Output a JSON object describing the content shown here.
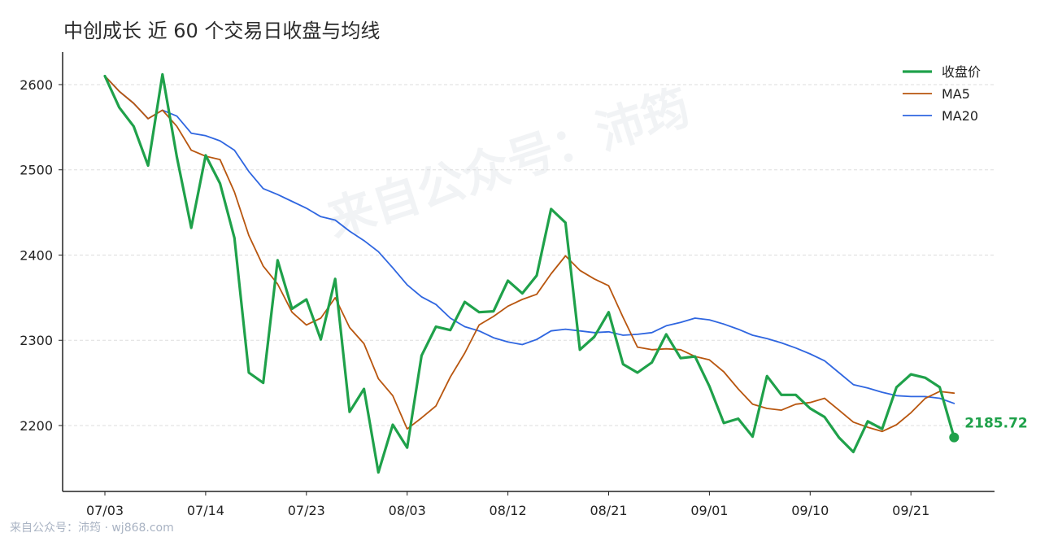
{
  "title": "中创成长 近 60 个交易日收盘与均线",
  "watermark": "来自公众号：沛筠",
  "footer": "来自公众号：沛筠 · wj868.com",
  "colors": {
    "close": "#1fa14a",
    "ma5": "#b8560f",
    "ma20": "#2f66e0",
    "grid": "#dddddd",
    "axis": "#222222"
  },
  "chart_data": {
    "type": "line",
    "title": "中创成长 近 60 个交易日收盘与均线",
    "xlabel": "",
    "ylabel": "",
    "ylim": [
      2130,
      2637
    ],
    "yticks": [
      2200,
      2300,
      2400,
      2500,
      2600
    ],
    "xticks": [
      {
        "i": 0,
        "label": "07/03"
      },
      {
        "i": 7,
        "label": "07/14"
      },
      {
        "i": 14,
        "label": "07/23"
      },
      {
        "i": 21,
        "label": "08/03"
      },
      {
        "i": 28,
        "label": "08/12"
      },
      {
        "i": 35,
        "label": "08/21"
      },
      {
        "i": 42,
        "label": "09/01"
      },
      {
        "i": 49,
        "label": "09/10"
      },
      {
        "i": 56,
        "label": "09/21"
      }
    ],
    "grid": true,
    "legend_position": "top-right",
    "series": [
      {
        "name": "收盘价",
        "values": [
          2610,
          2573,
          2551,
          2505,
          2612,
          2515,
          2432,
          2517,
          2484,
          2420,
          2262,
          2250,
          2394,
          2337,
          2348,
          2301,
          2372,
          2216,
          2243,
          2145,
          2201,
          2174,
          2282,
          2316,
          2312,
          2345,
          2333,
          2334,
          2370,
          2355,
          2376,
          2454,
          2438,
          2289,
          2304,
          2333,
          2272,
          2262,
          2274,
          2307,
          2279,
          2281,
          2246,
          2203,
          2208,
          2187,
          2258,
          2236,
          2236,
          2220,
          2210,
          2186,
          2169,
          2205,
          2196,
          2245,
          2260,
          2256,
          2245,
          2186
        ]
      },
      {
        "name": "MA5",
        "values": [
          2610,
          2592,
          2578,
          2560,
          2570,
          2551,
          2523,
          2516,
          2512,
          2474,
          2423,
          2387,
          2366,
          2333,
          2318,
          2326,
          2350,
          2315,
          2296,
          2255,
          2235,
          2196,
          2209,
          2223,
          2257,
          2285,
          2318,
          2328,
          2340,
          2348,
          2354,
          2378,
          2399,
          2382,
          2372,
          2364,
          2327,
          2292,
          2289,
          2290,
          2289,
          2281,
          2277,
          2263,
          2243,
          2225,
          2220,
          2218,
          2225,
          2227,
          2232,
          2218,
          2204,
          2198,
          2193,
          2201,
          2215,
          2232,
          2240,
          2238
        ]
      },
      {
        "name": "MA20",
        "values": [
          2610,
          2592,
          2578,
          2560,
          2570,
          2563,
          2543,
          2540,
          2534,
          2523,
          2498,
          2478,
          2471,
          2463,
          2455,
          2445,
          2441,
          2428,
          2417,
          2404,
          2385,
          2365,
          2351,
          2342,
          2326,
          2316,
          2311,
          2303,
          2298,
          2295,
          2301,
          2311,
          2313,
          2311,
          2309,
          2310,
          2306,
          2307,
          2309,
          2317,
          2321,
          2326,
          2324,
          2319,
          2313,
          2306,
          2302,
          2297,
          2291,
          2284,
          2276,
          2262,
          2248,
          2244,
          2239,
          2235,
          2234,
          2234,
          2232,
          2226
        ]
      }
    ],
    "end_label": "2185.72"
  }
}
